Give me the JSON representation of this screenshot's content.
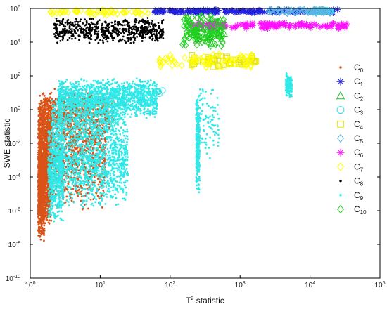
{
  "chart_data": {
    "type": "scatter",
    "title": "",
    "xlabel": "T",
    "xlabel_superscript": "2",
    "xlabel_suffix": " statistic",
    "ylabel": "SWE statistic",
    "xscale": "log",
    "yscale": "log",
    "xlim": [
      1,
      100000
    ],
    "ylim": [
      1e-10,
      1000000
    ],
    "grid": false,
    "legend_placement": "right",
    "x_ticks": [
      {
        "base": "10",
        "exp": "0",
        "value": 1
      },
      {
        "base": "10",
        "exp": "1",
        "value": 10
      },
      {
        "base": "10",
        "exp": "2",
        "value": 100
      },
      {
        "base": "10",
        "exp": "3",
        "value": 1000
      },
      {
        "base": "10",
        "exp": "4",
        "value": 10000
      },
      {
        "base": "10",
        "exp": "5",
        "value": 100000
      }
    ],
    "y_ticks": [
      {
        "base": "10",
        "exp": "-10",
        "value": 1e-10
      },
      {
        "base": "10",
        "exp": "-8",
        "value": 1e-08
      },
      {
        "base": "10",
        "exp": "-6",
        "value": 1e-06
      },
      {
        "base": "10",
        "exp": "-4",
        "value": 0.0001
      },
      {
        "base": "10",
        "exp": "-2",
        "value": 0.01
      },
      {
        "base": "10",
        "exp": "0",
        "value": 1
      },
      {
        "base": "10",
        "exp": "2",
        "value": 100
      },
      {
        "base": "10",
        "exp": "4",
        "value": 10000
      },
      {
        "base": "10",
        "exp": "6",
        "value": 1000000
      }
    ],
    "series": [
      {
        "name": "C",
        "sub": "0",
        "marker": "dot",
        "color": "#d95319",
        "clusters": [
          {
            "x": [
              1.3,
              2.0
            ],
            "y": [
              1e-07,
              10
            ],
            "n": 1600
          },
          {
            "x": [
              1.3,
              1.6
            ],
            "y": [
              1e-08,
              0.001
            ],
            "n": 400
          },
          {
            "x": [
              2.0,
              12
            ],
            "y": [
              1e-06,
              20
            ],
            "n": 1000
          },
          {
            "x": [
              1.5,
              16
            ],
            "y": [
              0.05,
              15
            ],
            "n": 500
          }
        ]
      },
      {
        "name": "C",
        "sub": "1",
        "marker": "star",
        "color": "#2020e0",
        "clusters": [
          {
            "x": [
              60,
              25000
            ],
            "y": [
              500000,
              900000
            ],
            "n": 160
          }
        ]
      },
      {
        "name": "C",
        "sub": "2",
        "marker": "triangle",
        "color": "#20c020",
        "clusters": [
          {
            "x": [
              200,
              600
            ],
            "y": [
              5000,
              500000
            ],
            "n": 40
          }
        ]
      },
      {
        "name": "C",
        "sub": "3",
        "marker": "circle",
        "color": "#30e0e0",
        "clusters": [
          {
            "x": [
              9000,
              22000
            ],
            "y": [
              550000,
              900000
            ],
            "n": 30
          },
          {
            "x": [
              60,
              80
            ],
            "y": [
              8,
              20
            ],
            "n": 6
          }
        ]
      },
      {
        "name": "C",
        "sub": "4",
        "marker": "square",
        "color": "#e8e800",
        "clusters": [
          {
            "x": [
              200,
              1800
            ],
            "y": [
              300,
              2000
            ],
            "n": 60
          }
        ]
      },
      {
        "name": "C",
        "sub": "5",
        "marker": "diamond",
        "color": "#5ab4e6",
        "clusters": [
          {
            "x": [
              2500,
              20000
            ],
            "y": [
              500000,
              1000000
            ],
            "n": 60
          }
        ]
      },
      {
        "name": "C",
        "sub": "6",
        "marker": "star",
        "color": "#ff10ff",
        "clusters": [
          {
            "x": [
              200,
              35000
            ],
            "y": [
              60000,
              160000
            ],
            "n": 120
          }
        ]
      },
      {
        "name": "C",
        "sub": "7",
        "marker": "diamond",
        "color": "#ffff00",
        "clusters": [
          {
            "x": [
              1.8,
              50
            ],
            "y": [
              400000,
              900000
            ],
            "n": 60
          },
          {
            "x": [
              70,
              1500
            ],
            "y": [
              300,
              2000
            ],
            "n": 70
          }
        ]
      },
      {
        "name": "C",
        "sub": "8",
        "marker": "dot",
        "color": "#000000",
        "clusters": [
          {
            "x": [
              2.2,
              80
            ],
            "y": [
              8000,
              300000
            ],
            "n": 600
          }
        ]
      },
      {
        "name": "C",
        "sub": "9",
        "marker": "dot",
        "color": "#30e8e8",
        "clusters": [
          {
            "x": [
              1.8,
              3.0
            ],
            "y": [
              1e-07,
              1
            ],
            "n": 600
          },
          {
            "x": [
              2.5,
              25
            ],
            "y": [
              1e-06,
              1
            ],
            "n": 1200
          },
          {
            "x": [
              2.5,
              65
            ],
            "y": [
              0.3,
              80
            ],
            "n": 1400
          },
          {
            "x": [
              2.0,
              20
            ],
            "y": [
              0.01,
              5
            ],
            "n": 400
          },
          {
            "x": [
              235,
              265
            ],
            "y": [
              1e-05,
              10
            ],
            "n": 300
          },
          {
            "x": [
              240,
              500
            ],
            "y": [
              0.001,
              30
            ],
            "n": 100
          },
          {
            "x": [
              4500,
              5500
            ],
            "y": [
              5,
              150
            ],
            "n": 140
          }
        ]
      },
      {
        "name": "C",
        "sub": "10",
        "marker": "diamond",
        "color": "#20d020",
        "clusters": [
          {
            "x": [
              150,
              600
            ],
            "y": [
              3000,
              800000
            ],
            "n": 110
          }
        ]
      }
    ]
  }
}
